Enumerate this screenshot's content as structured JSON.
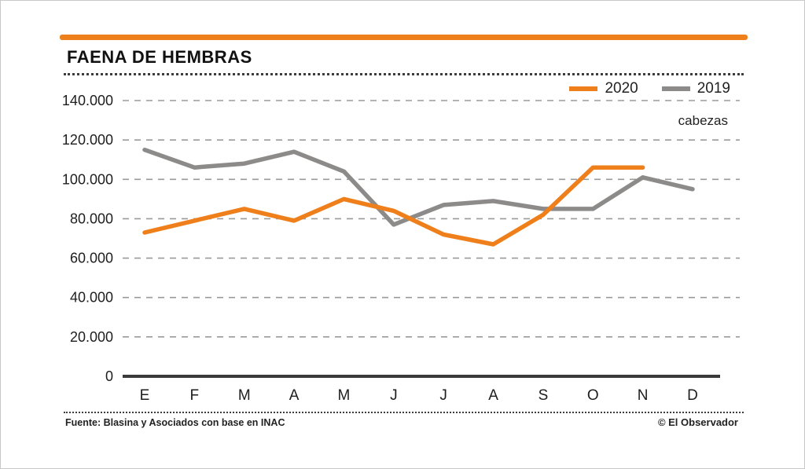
{
  "header": {
    "title": "FAENA DE HEMBRAS",
    "unit_label": "cabezas"
  },
  "legend": [
    {
      "label": "2020",
      "color": "#ef7f1b"
    },
    {
      "label": "2019",
      "color": "#8d8a8a"
    }
  ],
  "footer": {
    "source": "Fuente: Blasina y Asociados con base en INAC",
    "credit": "© El Observador"
  },
  "colors": {
    "accent": "#ef7f1b",
    "axis": "#3a3a3a",
    "grid": "#9a9a9a"
  },
  "chart_data": {
    "type": "line",
    "title": "FAENA DE HEMBRAS",
    "ylabel": "cabezas",
    "categories": [
      "E",
      "F",
      "M",
      "A",
      "M",
      "J",
      "J",
      "A",
      "S",
      "O",
      "N",
      "D"
    ],
    "series": [
      {
        "name": "2020",
        "color": "#ef7f1b",
        "values": [
          73000,
          79000,
          85000,
          79000,
          90000,
          84000,
          72000,
          67000,
          82000,
          106000,
          106000,
          null
        ]
      },
      {
        "name": "2019",
        "color": "#8d8a8a",
        "values": [
          115000,
          106000,
          108000,
          114000,
          104000,
          77000,
          87000,
          89000,
          85000,
          85000,
          101000,
          95000
        ]
      }
    ],
    "ylim": [
      0,
      140000
    ],
    "ytick_step": 20000,
    "ytick_labels": [
      "0",
      "20.000",
      "40.000",
      "60.000",
      "80.000",
      "100.000",
      "120.000",
      "140.000"
    ],
    "grid": "dashed-horizontal",
    "legend_position": "top-right"
  }
}
